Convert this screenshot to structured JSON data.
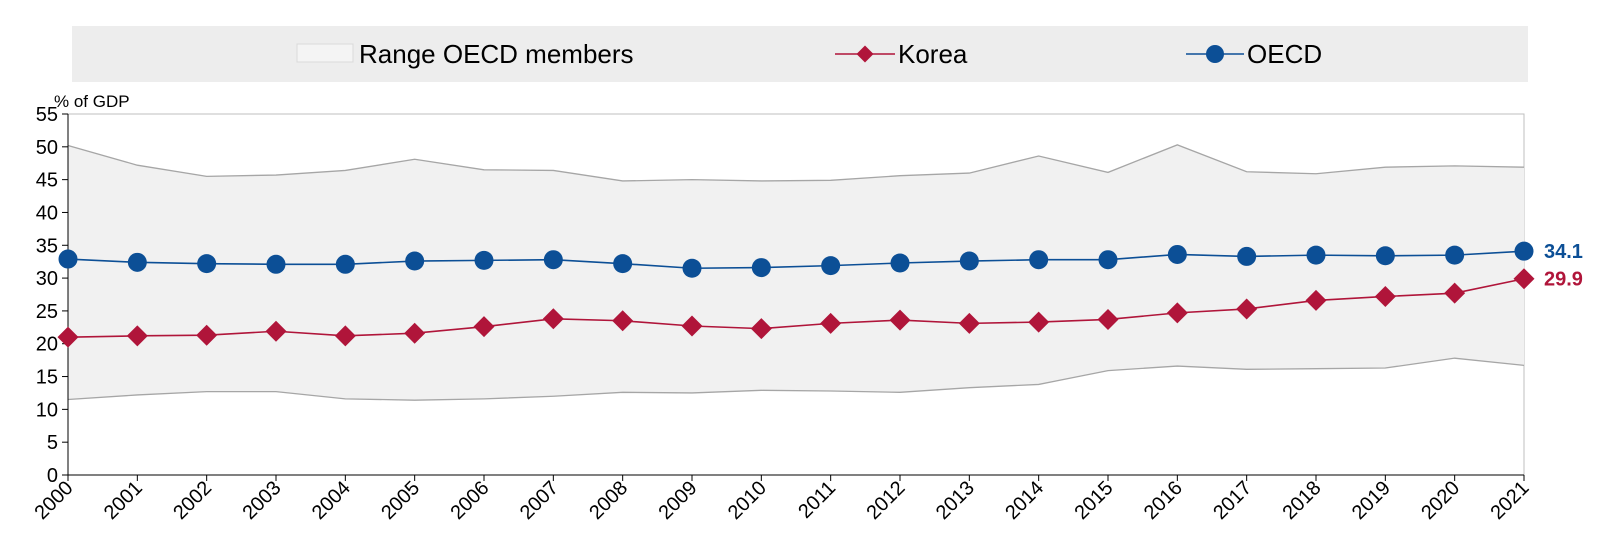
{
  "chart_data": {
    "type": "line",
    "title": "",
    "xlabel": "",
    "ylabel": "% of GDP",
    "ylim": [
      0,
      55
    ],
    "yticks": [
      "0",
      "5",
      "10",
      "15",
      "20",
      "25",
      "30",
      "35",
      "40",
      "45",
      "50",
      "55"
    ],
    "grid": false,
    "legend_position": "top",
    "categories": [
      "2000",
      "2001",
      "2002",
      "2003",
      "2004",
      "2005",
      "2006",
      "2007",
      "2008",
      "2009",
      "2010",
      "2011",
      "2012",
      "2013",
      "2014",
      "2015",
      "2016",
      "2017",
      "2018",
      "2019",
      "2020",
      "2021"
    ],
    "range": {
      "name": "Range OECD members",
      "min": [
        11.5,
        12.2,
        12.7,
        12.7,
        11.6,
        11.4,
        11.6,
        12.0,
        12.6,
        12.5,
        12.9,
        12.8,
        12.6,
        13.3,
        13.8,
        15.9,
        16.6,
        16.1,
        16.2,
        16.3,
        17.8,
        16.7
      ],
      "max": [
        50.2,
        47.2,
        45.5,
        45.7,
        46.4,
        48.1,
        46.5,
        46.4,
        44.8,
        45.0,
        44.8,
        44.9,
        45.6,
        46.0,
        48.6,
        46.1,
        50.3,
        46.2,
        45.9,
        46.9,
        47.1,
        46.9
      ],
      "fill_color": "#f1f1f1",
      "line_color": "#a6a6a6"
    },
    "series": [
      {
        "name": "Korea",
        "values": [
          21.0,
          21.2,
          21.3,
          21.9,
          21.2,
          21.6,
          22.6,
          23.8,
          23.5,
          22.7,
          22.3,
          23.1,
          23.6,
          23.1,
          23.3,
          23.7,
          24.7,
          25.3,
          26.6,
          27.2,
          27.7,
          29.9
        ],
        "color": "#b0153a",
        "marker": "diamond",
        "end_label": "29.9"
      },
      {
        "name": "OECD",
        "values": [
          32.9,
          32.4,
          32.2,
          32.1,
          32.1,
          32.6,
          32.7,
          32.8,
          32.2,
          31.5,
          31.6,
          31.9,
          32.3,
          32.6,
          32.8,
          32.8,
          33.6,
          33.3,
          33.5,
          33.4,
          33.5,
          34.1
        ],
        "color": "#0c4f96",
        "marker": "circle",
        "end_label": "34.1"
      }
    ]
  }
}
